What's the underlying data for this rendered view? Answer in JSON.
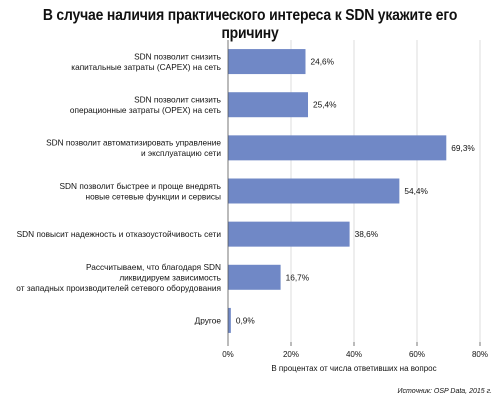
{
  "chart_data": {
    "type": "bar",
    "orientation": "horizontal",
    "title": "В случае наличия практического интереса к SDN укажите его причину",
    "categories": [
      [
        "SDN позволит снизить",
        "капитальные затраты (CAPEX) на сеть"
      ],
      [
        "SDN позволит снизить",
        "операционные затраты (OPEX) на сеть"
      ],
      [
        "SDN позволит автоматизировать управление",
        "и эксплуатацию сети"
      ],
      [
        "SDN позволит быстрее и проще внедрять",
        "новые сетевые функции и сервисы"
      ],
      [
        "SDN повысит надежность и отказоустойчивость сети"
      ],
      [
        "Рассчитываем, что благодаря SDN",
        "ликвидируем зависимость",
        "от западных производителей сетевого оборудования"
      ],
      [
        "Другое"
      ]
    ],
    "values": [
      24.6,
      25.4,
      69.3,
      54.4,
      38.6,
      16.7,
      0.9
    ],
    "value_labels": [
      "24,6%",
      "25,4%",
      "69,3%",
      "54,4%",
      "38,6%",
      "16,7%",
      "0,9%"
    ],
    "xlim": [
      0,
      80
    ],
    "xticks": [
      0,
      20,
      40,
      60,
      80
    ],
    "xtick_labels": [
      "0%",
      "20%",
      "40%",
      "60%",
      "80%"
    ],
    "xlabel": "В процентах от числа ответивших на вопрос",
    "grid": true,
    "bar_color": "#7088c6",
    "source": "Источник: OSP Data, 2015 г."
  }
}
